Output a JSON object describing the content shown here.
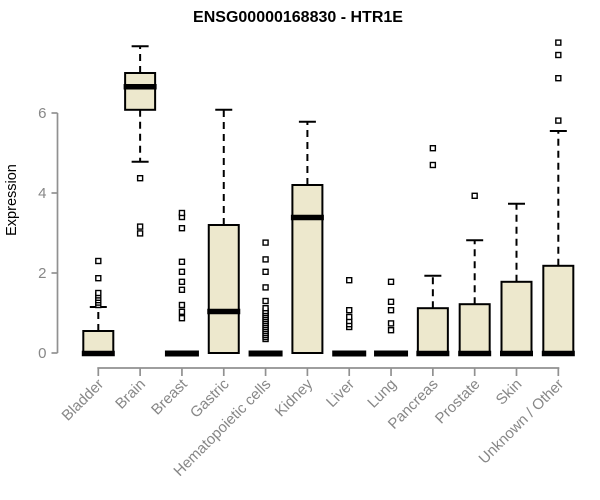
{
  "title": "ENSG00000168830 - HTR1E",
  "chart_data": {
    "type": "boxplot",
    "title": "ENSG00000168830 - HTR1E",
    "ylabel": "Expression",
    "xlabel": "",
    "yticks": [
      0,
      2,
      4,
      6
    ],
    "ylim": [
      0,
      6
    ],
    "grid": false,
    "legend": "none",
    "box_fill": "#EDE8CD",
    "box_stroke": "#000000",
    "axis_color": "#919191",
    "text_color": "#878787",
    "title_color": "#000000",
    "outlier_fill": "#ffffff",
    "categories": [
      "Bladder",
      "Brain",
      "Breast",
      "Gastric",
      "Hematopoietic cells",
      "Kidney",
      "Liver",
      "Lung",
      "Pancreas",
      "Prostate",
      "Skin",
      "Unknown / Other"
    ],
    "series": [
      {
        "category": "Bladder",
        "q1": 0,
        "median": 0,
        "q3": 0.55,
        "whisker_low": 0,
        "whisker_high": 1.15,
        "outliers": [
          1.2,
          1.26,
          1.32,
          1.38,
          1.44,
          1.5,
          1.87,
          2.3
        ]
      },
      {
        "category": "Brain",
        "q1": 6.08,
        "median": 6.67,
        "q3": 7.0,
        "whisker_low": 4.78,
        "whisker_high": 7.67,
        "outliers": [
          2.99,
          3.16,
          4.37
        ]
      },
      {
        "category": "Breast",
        "q1": 0,
        "median": 0,
        "q3": 0,
        "whisker_low": 0,
        "whisker_high": 0,
        "outliers": [
          0.87,
          1.03,
          1.2,
          1.58,
          1.78,
          2.03,
          2.28,
          3.12,
          3.4,
          3.5
        ]
      },
      {
        "category": "Gastric",
        "q1": 0,
        "median": 1.05,
        "q3": 3.2,
        "whisker_low": 0,
        "whisker_high": 6.08,
        "outliers": []
      },
      {
        "category": "Hematopoietic cells",
        "q1": 0,
        "median": 0,
        "q3": 0,
        "whisker_low": 0,
        "whisker_high": 0,
        "outliers": [
          0.35,
          0.4,
          0.45,
          0.5,
          0.55,
          0.6,
          0.65,
          0.7,
          0.75,
          0.8,
          0.85,
          0.9,
          0.95,
          1.0,
          1.05,
          1.12,
          1.3,
          1.64,
          2.03,
          2.34,
          2.76
        ]
      },
      {
        "category": "Kidney",
        "q1": 0,
        "median": 3.4,
        "q3": 4.2,
        "whisker_low": 0,
        "whisker_high": 5.78,
        "outliers": []
      },
      {
        "category": "Liver",
        "q1": 0,
        "median": 0,
        "q3": 0,
        "whisker_low": 0,
        "whisker_high": 0,
        "outliers": [
          0.65,
          0.72,
          0.8,
          0.9,
          1.07,
          1.82
        ]
      },
      {
        "category": "Lung",
        "q1": 0,
        "median": 0,
        "q3": 0,
        "whisker_low": 0,
        "whisker_high": 0,
        "outliers": [
          0.57,
          0.74,
          1.07,
          1.28,
          1.78
        ]
      },
      {
        "category": "Pancreas",
        "q1": 0,
        "median": 0,
        "q3": 1.12,
        "whisker_low": 0,
        "whisker_high": 1.93,
        "outliers": [
          4.7,
          5.12
        ]
      },
      {
        "category": "Prostate",
        "q1": 0,
        "median": 0,
        "q3": 1.22,
        "whisker_low": 0,
        "whisker_high": 2.82,
        "outliers": [
          3.93
        ]
      },
      {
        "category": "Skin",
        "q1": 0,
        "median": 0,
        "q3": 1.78,
        "whisker_low": 0,
        "whisker_high": 3.73,
        "outliers": []
      },
      {
        "category": "Unknown / Other",
        "q1": 0,
        "median": 0,
        "q3": 2.18,
        "whisker_low": 0,
        "whisker_high": 5.55,
        "outliers": [
          5.81,
          6.87,
          7.45,
          7.76
        ]
      }
    ]
  }
}
